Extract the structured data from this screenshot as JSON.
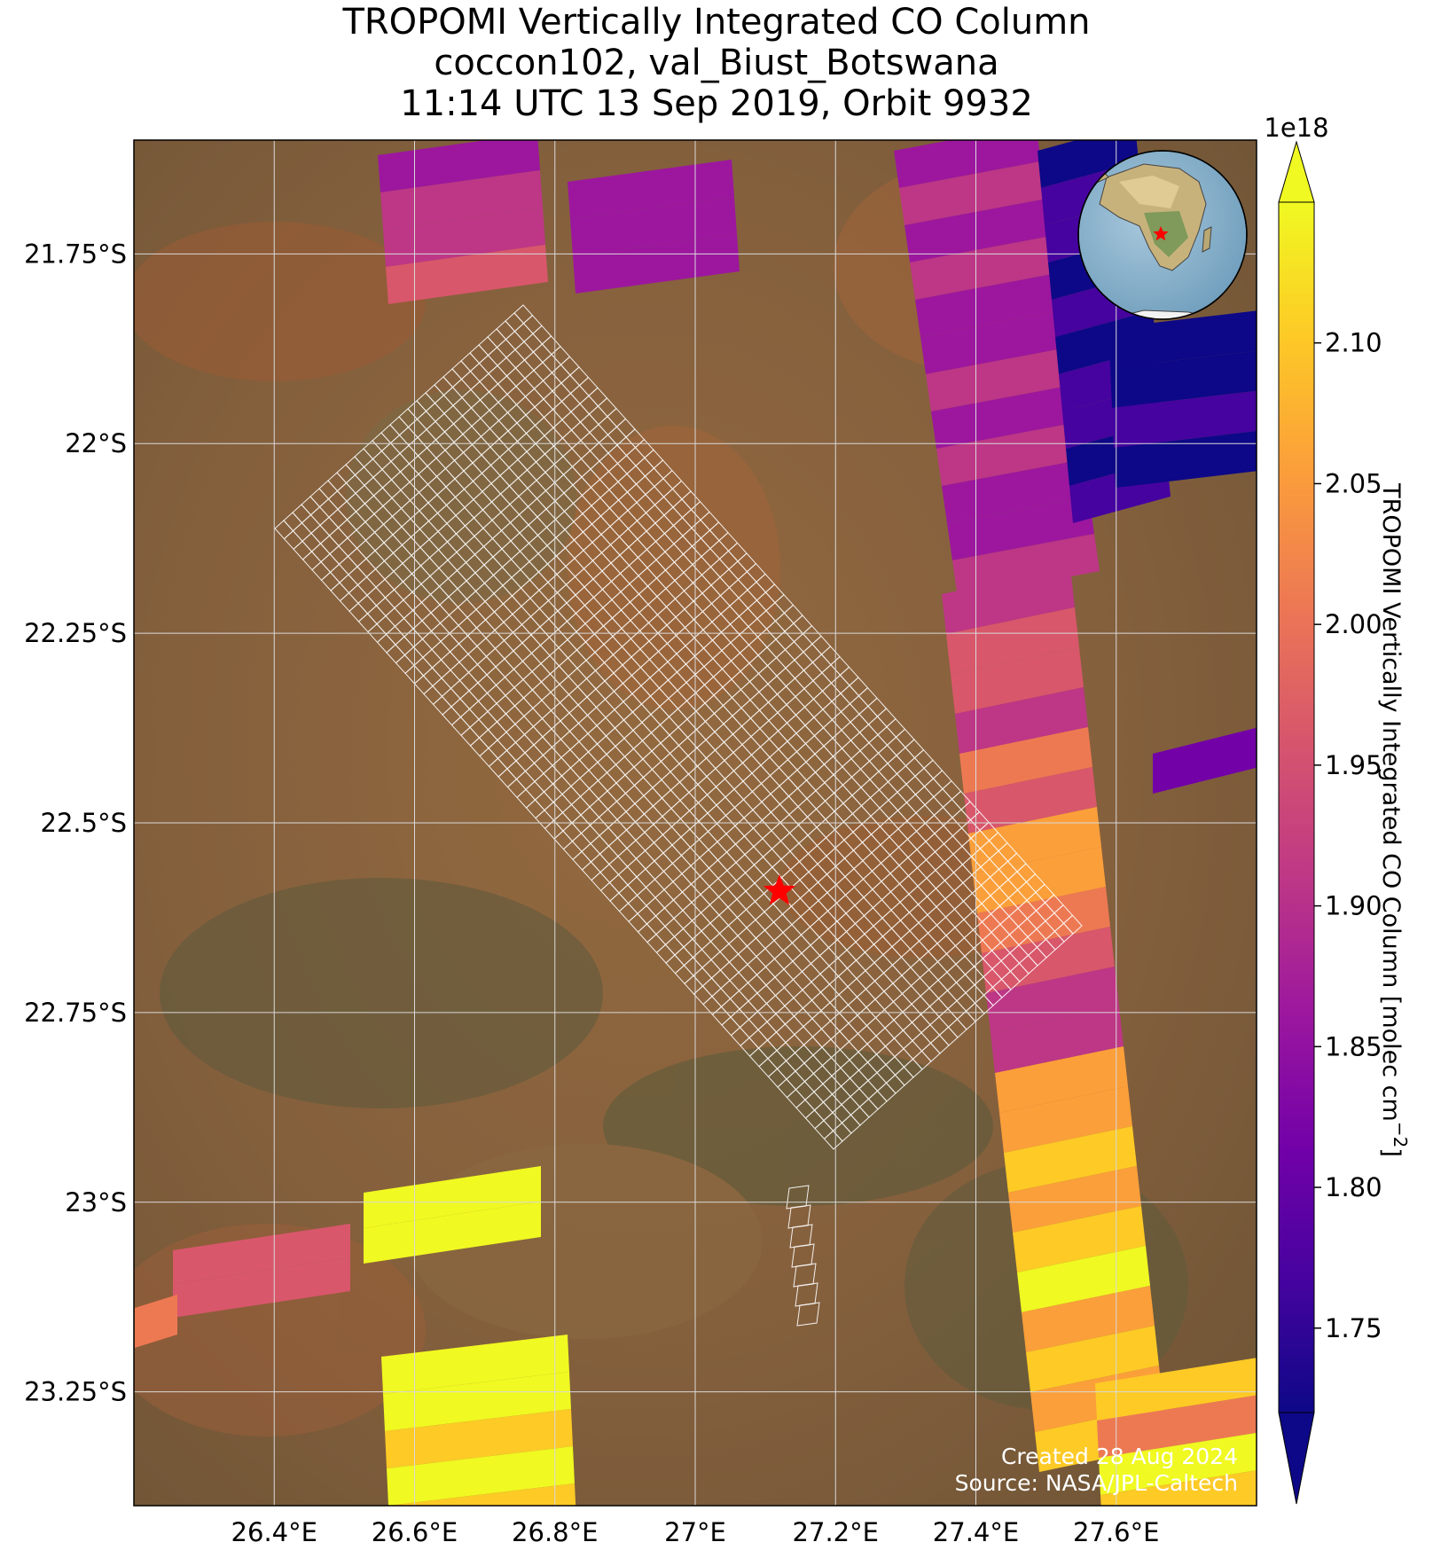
{
  "title": {
    "line1": "TROPOMI Vertically Integrated CO Column",
    "line2": "coccon102, val_Biust_Botswana",
    "line3": "11:14 UTC 13 Sep 2019, Orbit 9932"
  },
  "map": {
    "lon_range": [
      26.2,
      27.8
    ],
    "lat_range": [
      -23.4,
      -21.6
    ],
    "x_ticks": [
      {
        "value": 26.4,
        "label": "26.4°E"
      },
      {
        "value": 26.6,
        "label": "26.6°E"
      },
      {
        "value": 26.8,
        "label": "26.8°E"
      },
      {
        "value": 27.0,
        "label": "27°E"
      },
      {
        "value": 27.2,
        "label": "27.2°E"
      },
      {
        "value": 27.4,
        "label": "27.4°E"
      },
      {
        "value": 27.6,
        "label": "27.6°E"
      }
    ],
    "y_ticks": [
      {
        "value": -21.75,
        "label": "21.75°S"
      },
      {
        "value": -22.0,
        "label": "22°S"
      },
      {
        "value": -22.25,
        "label": "22.25°S"
      },
      {
        "value": -22.5,
        "label": "22.5°S"
      },
      {
        "value": -22.75,
        "label": "22.75°S"
      },
      {
        "value": -23.0,
        "label": "23°S"
      },
      {
        "value": -23.25,
        "label": "23.25°S"
      }
    ],
    "gridlines": true,
    "basemap": "satellite imagery",
    "site_marker": {
      "lon": 27.12,
      "lat": -22.59,
      "symbol": "red-star"
    },
    "inset_globe": {
      "location": "top-right",
      "marker": "red-star"
    },
    "credits": {
      "created": "Created 28 Aug 2024",
      "source": "Source: NASA/JPL-Caltech"
    }
  },
  "colorbar": {
    "label": "TROPOMI Vertically Integrated CO Column [molec cm",
    "label_sup": "−2",
    "label_end": "]",
    "multiplier": "1e18",
    "range": [
      1.72,
      2.15
    ],
    "colormap": "plasma",
    "extend": "both",
    "ticks": [
      {
        "value": 1.75,
        "label": "1.75"
      },
      {
        "value": 1.8,
        "label": "1.80"
      },
      {
        "value": 1.85,
        "label": "1.85"
      },
      {
        "value": 1.9,
        "label": "1.90"
      },
      {
        "value": 1.95,
        "label": "1.95"
      },
      {
        "value": 2.0,
        "label": "2.00"
      },
      {
        "value": 2.05,
        "label": "2.05"
      },
      {
        "value": 2.1,
        "label": "2.10"
      }
    ]
  },
  "colors": {
    "plasma": [
      "#0d0887",
      "#46039f",
      "#7201a8",
      "#9c179e",
      "#bd3786",
      "#d8576b",
      "#ed7953",
      "#fb9f3a",
      "#fdca26",
      "#f0f921"
    ],
    "marker": "#ff0000",
    "grid": "#d9d9d9",
    "footprint": "#ffffff"
  }
}
